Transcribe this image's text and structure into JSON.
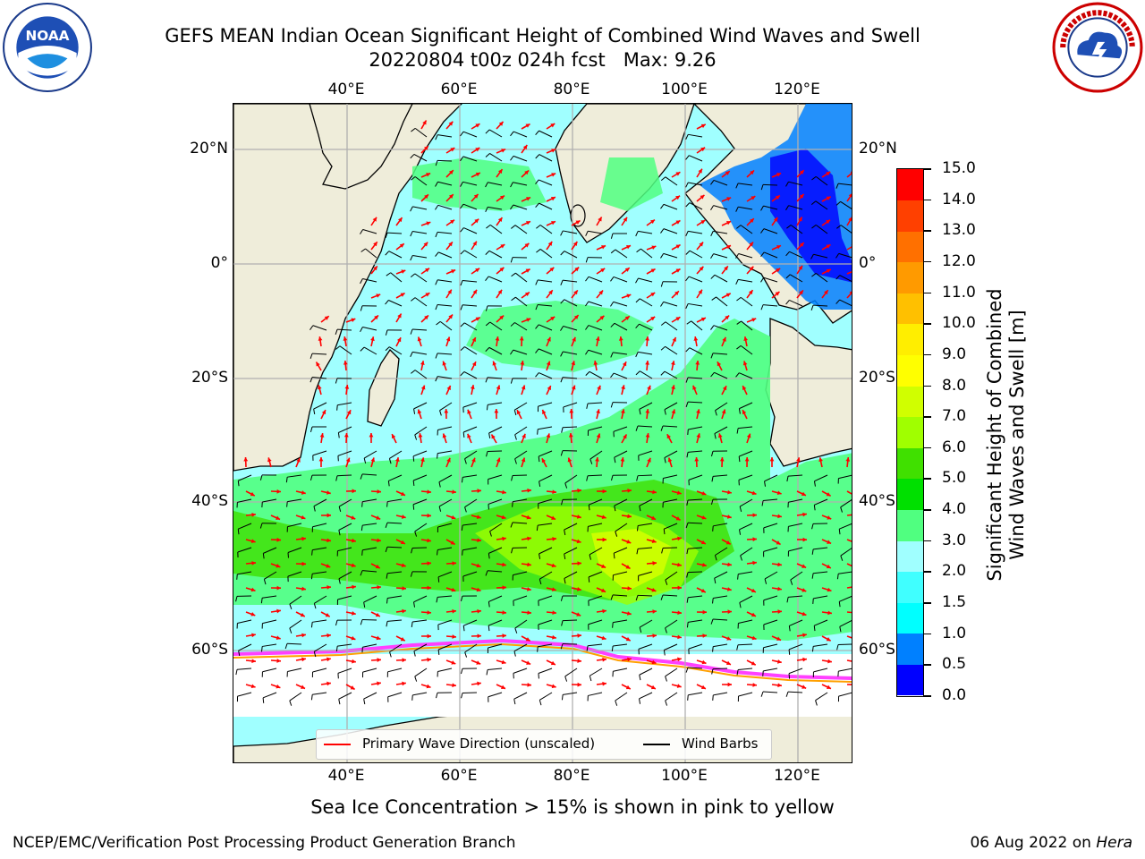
{
  "header": {
    "title_line1": "GEFS MEAN Indian Ocean Significant Height of Combined Wind Waves and Swell",
    "title_line2": "20220804 t00z 024h fcst   Max: 9.26"
  },
  "logos": {
    "left": {
      "icon": "noaa-logo",
      "text": "NOAA"
    },
    "right": {
      "icon": "nws-logo",
      "text": "NATIONAL WEATHER SERVICE"
    }
  },
  "map": {
    "lon_ticks_top": [
      "40°E",
      "60°E",
      "80°E",
      "100°E",
      "120°E"
    ],
    "lon_ticks_bottom": [
      "40°E",
      "60°E",
      "80°E",
      "100°E",
      "120°E"
    ],
    "lat_ticks_left": [
      "20°N",
      "0°",
      "20°S",
      "40°S",
      "60°S"
    ],
    "lat_ticks_right": [
      "20°N",
      "0°",
      "20°S",
      "40°S",
      "60°S"
    ],
    "land_color": "#efedda",
    "arrow_color": "#ff0000",
    "barb_color": "#000000"
  },
  "legend": {
    "wave_direction": "Primary Wave Direction (unscaled)",
    "wind_barbs": "Wind Barbs"
  },
  "colorbar": {
    "title_line1": "Significant Height of Combined",
    "title_line2": "Wind Waves and Swell [m]",
    "tick_labels": [
      "0.0",
      "0.5",
      "1.0",
      "1.5",
      "2.0",
      "3.0",
      "4.0",
      "5.0",
      "6.0",
      "7.0",
      "8.0",
      "9.0",
      "10.0",
      "11.0",
      "12.0",
      "13.0",
      "14.0",
      "15.0"
    ],
    "colors": [
      "#0000ff",
      "#0080ff",
      "#00ffff",
      "#40ffff",
      "#a0ffff",
      "#50ff80",
      "#00e000",
      "#40e000",
      "#a0ff00",
      "#d0ff00",
      "#ffff00",
      "#ffee00",
      "#ffc000",
      "#ff9a00",
      "#ff7000",
      "#ff4000",
      "#ff0000"
    ]
  },
  "footer": {
    "ice_note": "Sea Ice Concentration > 15% is shown in pink to yellow",
    "left": "NCEP/EMC/Verification Post Processing Product Generation Branch",
    "right_date": "06 Aug 2022 on ",
    "right_host": "Hera"
  }
}
